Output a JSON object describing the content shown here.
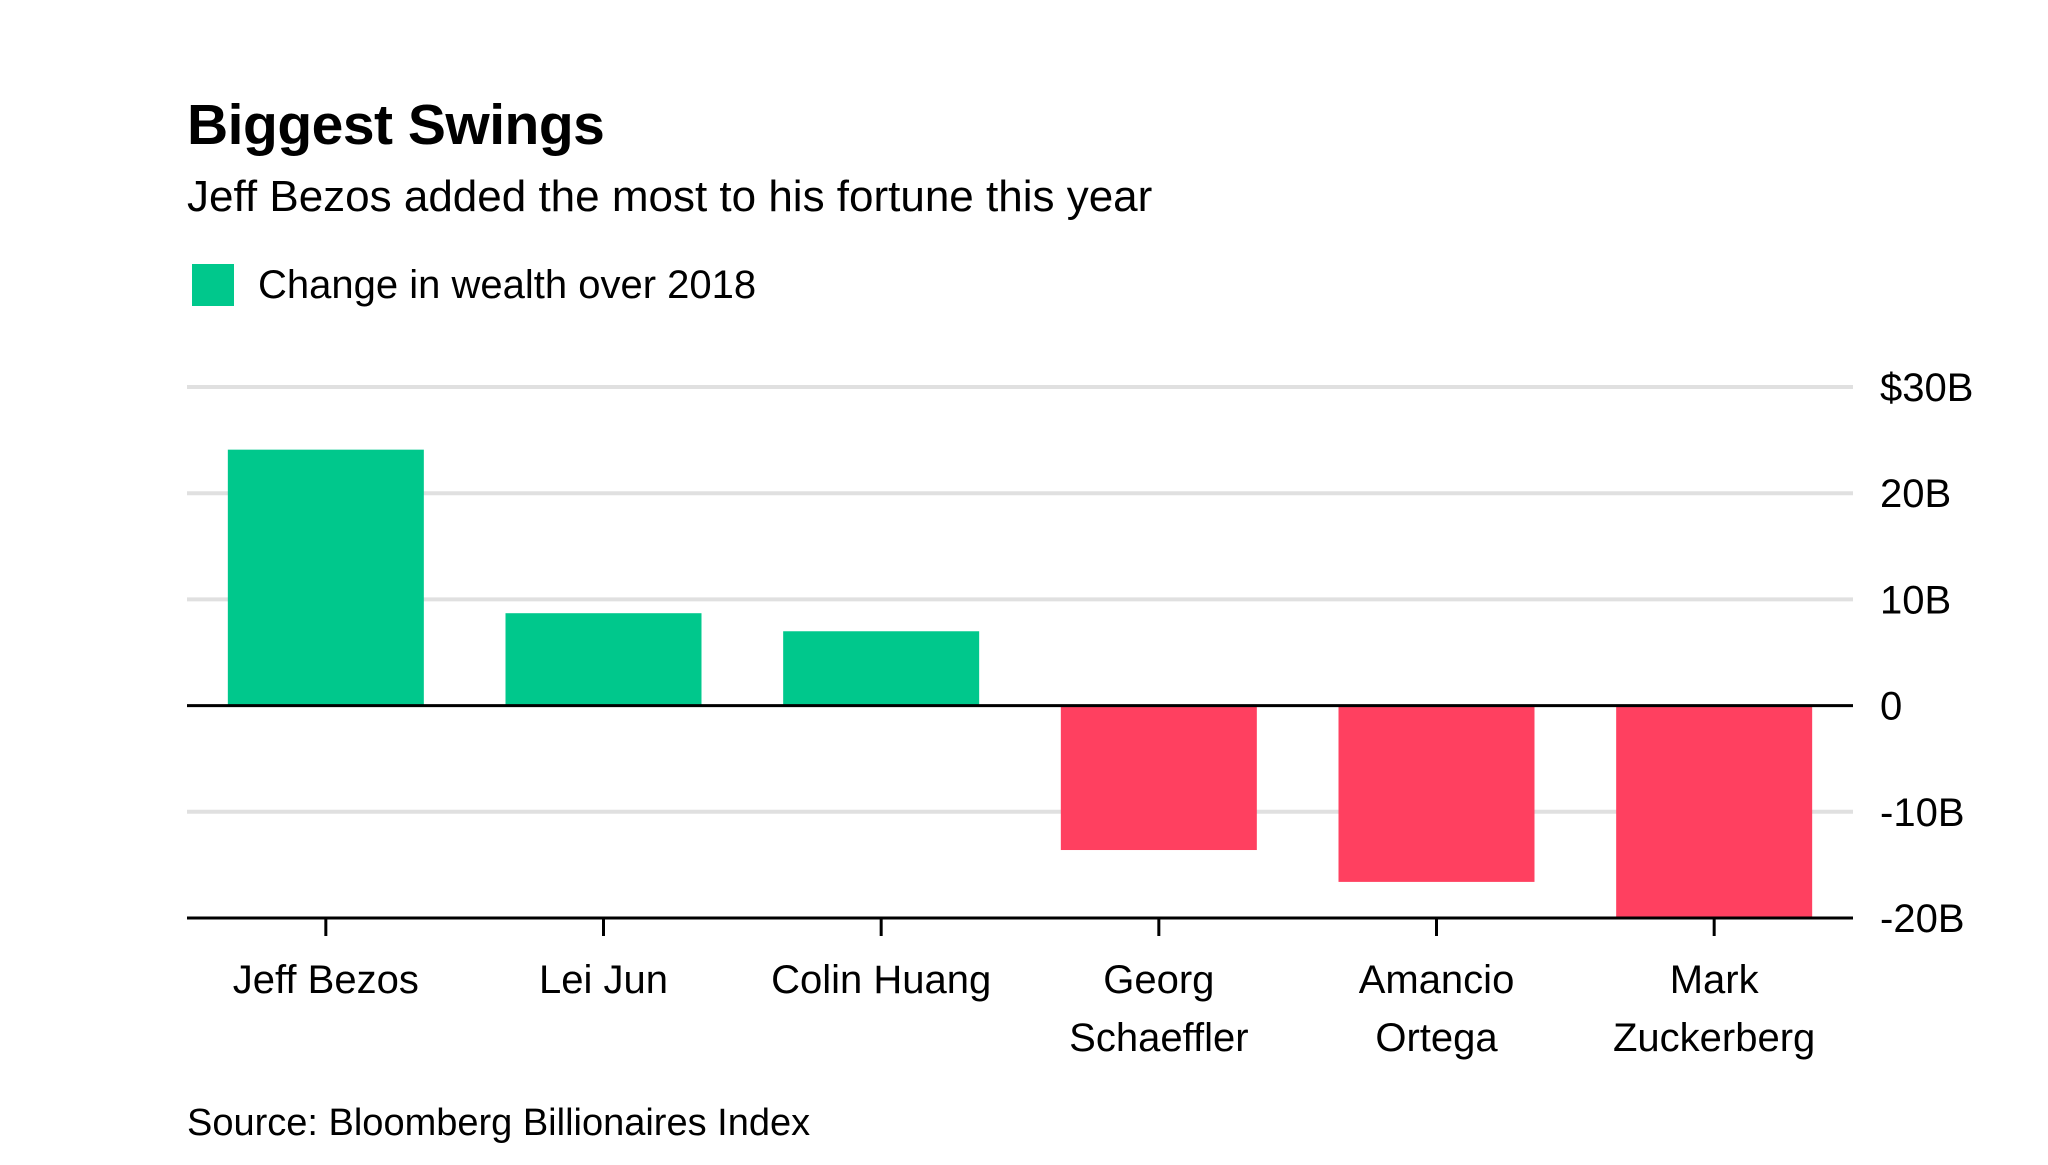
{
  "chart_data": {
    "type": "bar",
    "title": "Biggest Swings",
    "subtitle": "Jeff Bezos added the most to his fortune this year",
    "legend": [
      "Change in wealth over 2018"
    ],
    "categories": [
      [
        "Jeff Bezos"
      ],
      [
        "Lei Jun"
      ],
      [
        "Colin Huang"
      ],
      [
        "Georg",
        "Schaeffler"
      ],
      [
        "Amancio",
        "Ortega"
      ],
      [
        "Mark",
        "Zuckerberg"
      ]
    ],
    "series": [
      {
        "name": "Change in wealth over 2018",
        "values": [
          24.1,
          8.7,
          7.0,
          -13.6,
          -16.6,
          -20.0
        ]
      }
    ],
    "yticks": [
      30,
      20,
      10,
      0,
      -10,
      -20
    ],
    "ytick_labels": [
      "$30B",
      "20B",
      "10B",
      "0",
      "-10B",
      "-20B"
    ],
    "ylim": [
      -20,
      30
    ],
    "grid": true,
    "y_axis_position": "right",
    "legend_position": "top-left",
    "colors": {
      "positive": "#00c88c",
      "negative": "#ff4060",
      "grid": "#e0e0e0",
      "axis": "#000000"
    },
    "source": "Source: Bloomberg Billionaires Index"
  }
}
